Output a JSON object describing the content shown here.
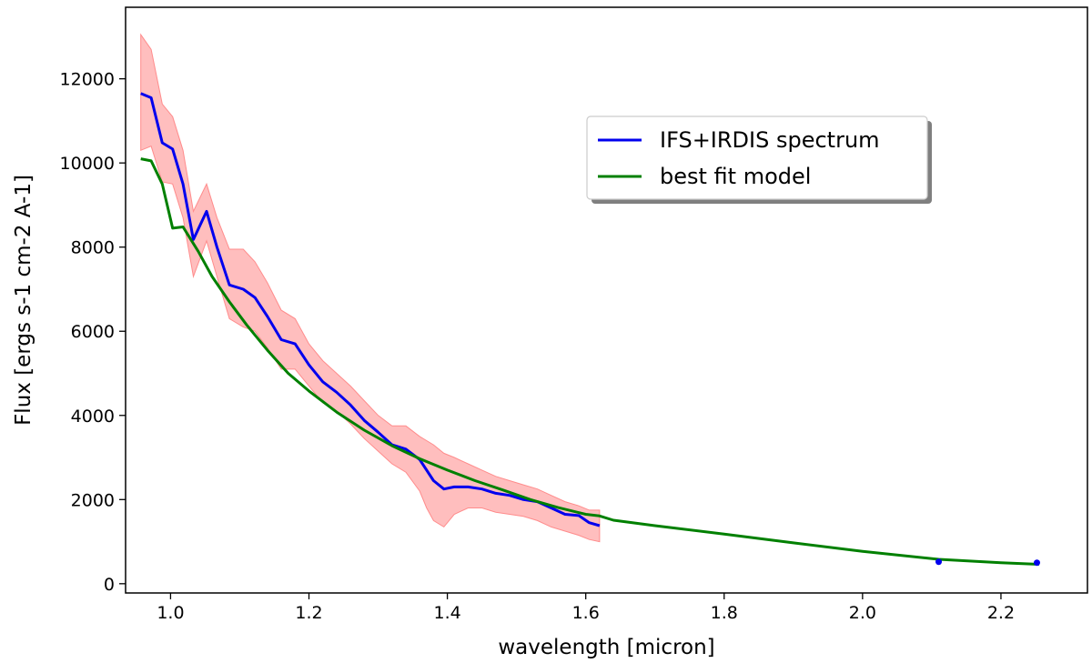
{
  "chart_data": {
    "type": "line",
    "xlabel": "wavelength [micron]",
    "ylabel": "Flux [ergs s-1 cm-2 A-1]",
    "xlim": [
      0.935,
      2.325
    ],
    "ylim": [
      -220,
      13700
    ],
    "x_ticks": [
      1.0,
      1.2,
      1.4,
      1.6,
      1.8,
      2.0,
      2.2
    ],
    "x_tick_labels": [
      "1.0",
      "1.2",
      "1.4",
      "1.6",
      "1.8",
      "2.0",
      "2.2"
    ],
    "y_ticks": [
      0,
      2000,
      4000,
      6000,
      8000,
      10000,
      12000
    ],
    "y_tick_labels": [
      "0",
      "2000",
      "4000",
      "6000",
      "8000",
      "10000",
      "12000"
    ],
    "grid": false,
    "legend_position": "upper-right",
    "series": [
      {
        "name": "IFS+IRDIS spectrum",
        "color": "#0000ee",
        "x": [
          0.957,
          0.972,
          0.988,
          1.003,
          1.018,
          1.033,
          1.052,
          1.067,
          1.085,
          1.105,
          1.122,
          1.14,
          1.16,
          1.18,
          1.2,
          1.22,
          1.24,
          1.26,
          1.28,
          1.3,
          1.32,
          1.34,
          1.36,
          1.38,
          1.395,
          1.41,
          1.43,
          1.45,
          1.47,
          1.49,
          1.51,
          1.53,
          1.55,
          1.57,
          1.59,
          1.605,
          1.62
        ],
        "y": [
          11650,
          11550,
          10480,
          10330,
          9500,
          8180,
          8850,
          8000,
          7100,
          7000,
          6800,
          6350,
          5800,
          5700,
          5200,
          4800,
          4550,
          4250,
          3880,
          3600,
          3300,
          3200,
          2950,
          2450,
          2250,
          2300,
          2300,
          2250,
          2150,
          2100,
          2000,
          1950,
          1800,
          1650,
          1620,
          1450,
          1380
        ]
      },
      {
        "name": "best fit model",
        "color": "#008000",
        "x": [
          0.957,
          0.972,
          0.988,
          1.003,
          1.018,
          1.04,
          1.06,
          1.085,
          1.11,
          1.14,
          1.17,
          1.2,
          1.24,
          1.28,
          1.32,
          1.36,
          1.4,
          1.44,
          1.48,
          1.52,
          1.56,
          1.6,
          1.62,
          1.64,
          1.7,
          1.8,
          1.9,
          2.0,
          2.11,
          2.2,
          2.255
        ],
        "y": [
          10100,
          10050,
          9500,
          8450,
          8480,
          7900,
          7300,
          6700,
          6150,
          5550,
          5000,
          4580,
          4080,
          3650,
          3280,
          2970,
          2700,
          2450,
          2230,
          2000,
          1810,
          1650,
          1610,
          1510,
          1380,
          1180,
          970,
          770,
          580,
          500,
          460
        ]
      }
    ],
    "uncertainty_band": {
      "color": "#ffb3b3",
      "x": [
        0.957,
        0.972,
        0.988,
        1.003,
        1.018,
        1.033,
        1.052,
        1.067,
        1.085,
        1.105,
        1.122,
        1.14,
        1.16,
        1.18,
        1.2,
        1.22,
        1.24,
        1.26,
        1.28,
        1.3,
        1.32,
        1.34,
        1.36,
        1.37,
        1.38,
        1.395,
        1.41,
        1.43,
        1.45,
        1.47,
        1.49,
        1.51,
        1.53,
        1.55,
        1.57,
        1.59,
        1.605,
        1.62
      ],
      "upper": [
        13050,
        12700,
        11400,
        11100,
        10300,
        8850,
        9500,
        8700,
        7950,
        7950,
        7650,
        7150,
        6500,
        6300,
        5700,
        5300,
        5000,
        4700,
        4350,
        4000,
        3750,
        3750,
        3500,
        3400,
        3300,
        3100,
        3000,
        2850,
        2700,
        2550,
        2450,
        2350,
        2250,
        2100,
        1950,
        1850,
        1750,
        1750
      ],
      "lower": [
        10300,
        10400,
        9550,
        9500,
        8700,
        7300,
        8150,
        7300,
        6300,
        6100,
        6000,
        5600,
        5100,
        5100,
        4700,
        4300,
        4100,
        3800,
        3450,
        3150,
        2850,
        2650,
        2200,
        1800,
        1500,
        1350,
        1650,
        1800,
        1800,
        1700,
        1650,
        1600,
        1500,
        1350,
        1250,
        1150,
        1050,
        1000
      ]
    },
    "extra_points": {
      "color": "#0000ee",
      "x": [
        2.11,
        2.252
      ],
      "y": [
        520,
        500
      ]
    }
  }
}
